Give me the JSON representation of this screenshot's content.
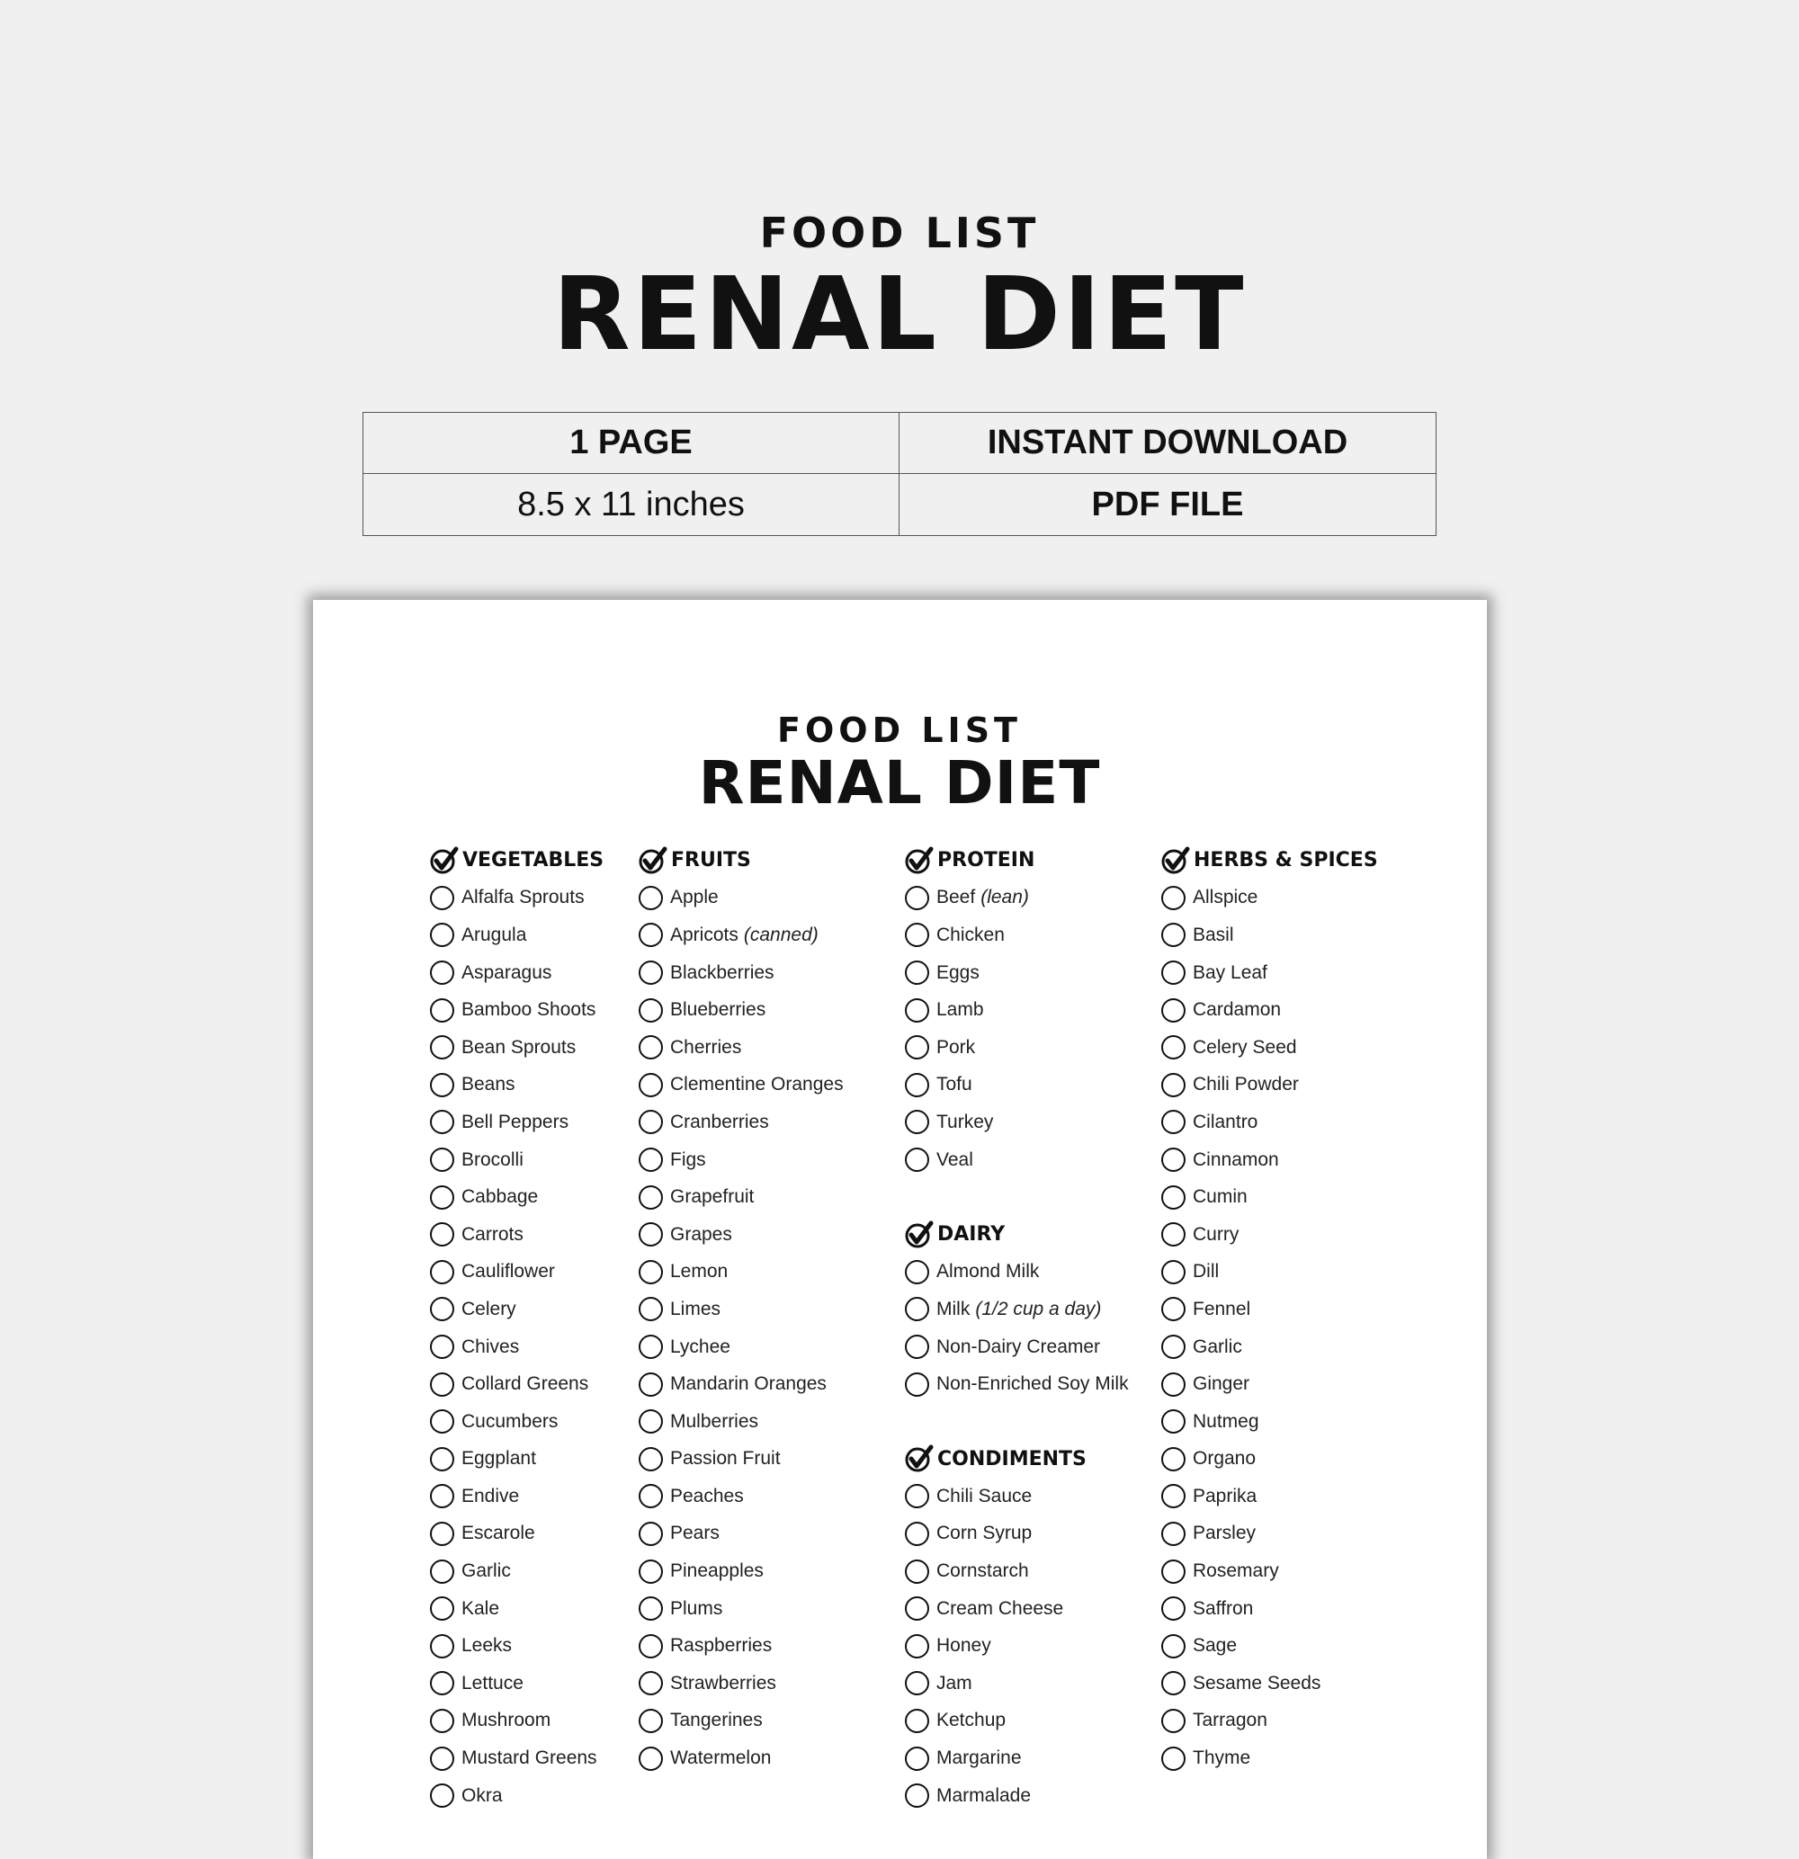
{
  "header": {
    "subtitle": "FOOD LIST",
    "title": "RENAL DIET"
  },
  "info": {
    "pages": "1 PAGE",
    "delivery": "INSTANT DOWNLOAD",
    "size": "8.5 x 11 inches",
    "format": "PDF FILE"
  },
  "document": {
    "subtitle": "FOOD LIST",
    "title": "RENAL DIET",
    "columns": [
      {
        "sections": [
          {
            "title": "VEGETABLES",
            "items": [
              {
                "name": "Alfalfa Sprouts"
              },
              {
                "name": "Arugula"
              },
              {
                "name": "Asparagus"
              },
              {
                "name": "Bamboo Shoots"
              },
              {
                "name": "Bean Sprouts"
              },
              {
                "name": "Beans"
              },
              {
                "name": "Bell Peppers"
              },
              {
                "name": "Brocolli"
              },
              {
                "name": "Cabbage"
              },
              {
                "name": "Carrots"
              },
              {
                "name": "Cauliflower"
              },
              {
                "name": "Celery"
              },
              {
                "name": "Chives"
              },
              {
                "name": "Collard Greens"
              },
              {
                "name": "Cucumbers"
              },
              {
                "name": "Eggplant"
              },
              {
                "name": "Endive"
              },
              {
                "name": "Escarole"
              },
              {
                "name": "Garlic"
              },
              {
                "name": "Kale"
              },
              {
                "name": "Leeks"
              },
              {
                "name": "Lettuce"
              },
              {
                "name": "Mushroom"
              },
              {
                "name": "Mustard Greens"
              },
              {
                "name": "Okra"
              }
            ]
          }
        ]
      },
      {
        "sections": [
          {
            "title": "FRUITS",
            "items": [
              {
                "name": "Apple"
              },
              {
                "name": "Apricots",
                "note": "(canned)"
              },
              {
                "name": "Blackberries"
              },
              {
                "name": "Blueberries"
              },
              {
                "name": "Cherries"
              },
              {
                "name": "Clementine Oranges"
              },
              {
                "name": "Cranberries"
              },
              {
                "name": "Figs"
              },
              {
                "name": "Grapefruit"
              },
              {
                "name": "Grapes"
              },
              {
                "name": "Lemon"
              },
              {
                "name": "Limes"
              },
              {
                "name": "Lychee"
              },
              {
                "name": "Mandarin Oranges"
              },
              {
                "name": "Mulberries"
              },
              {
                "name": "Passion Fruit"
              },
              {
                "name": "Peaches"
              },
              {
                "name": "Pears"
              },
              {
                "name": "Pineapples"
              },
              {
                "name": "Plums"
              },
              {
                "name": "Raspberries"
              },
              {
                "name": "Strawberries"
              },
              {
                "name": "Tangerines"
              },
              {
                "name": "Watermelon"
              }
            ]
          }
        ]
      },
      {
        "sections": [
          {
            "title": "PROTEIN",
            "items": [
              {
                "name": "Beef",
                "note": "(lean)"
              },
              {
                "name": "Chicken"
              },
              {
                "name": "Eggs"
              },
              {
                "name": "Lamb"
              },
              {
                "name": "Pork"
              },
              {
                "name": "Tofu"
              },
              {
                "name": "Turkey"
              },
              {
                "name": "Veal"
              }
            ]
          },
          {
            "title": "DAIRY",
            "items": [
              {
                "name": "Almond Milk"
              },
              {
                "name": "Milk",
                "note": "(1/2 cup a day)"
              },
              {
                "name": "Non-Dairy Creamer"
              },
              {
                "name": "Non-Enriched Soy Milk"
              }
            ]
          },
          {
            "title": "CONDIMENTS",
            "items": [
              {
                "name": "Chili Sauce"
              },
              {
                "name": "Corn Syrup"
              },
              {
                "name": "Cornstarch"
              },
              {
                "name": "Cream Cheese"
              },
              {
                "name": "Honey"
              },
              {
                "name": "Jam"
              },
              {
                "name": "Ketchup"
              },
              {
                "name": "Margarine"
              },
              {
                "name": "Marmalade"
              }
            ]
          }
        ]
      },
      {
        "sections": [
          {
            "title": "HERBS & SPICES",
            "items": [
              {
                "name": "Allspice"
              },
              {
                "name": "Basil"
              },
              {
                "name": "Bay Leaf"
              },
              {
                "name": "Cardamon"
              },
              {
                "name": "Celery Seed"
              },
              {
                "name": "Chili Powder"
              },
              {
                "name": "Cilantro"
              },
              {
                "name": "Cinnamon"
              },
              {
                "name": "Cumin"
              },
              {
                "name": "Curry"
              },
              {
                "name": "Dill"
              },
              {
                "name": "Fennel"
              },
              {
                "name": "Garlic"
              },
              {
                "name": "Ginger"
              },
              {
                "name": "Nutmeg"
              },
              {
                "name": "Organo"
              },
              {
                "name": "Paprika"
              },
              {
                "name": "Parsley"
              },
              {
                "name": "Rosemary"
              },
              {
                "name": "Saffron"
              },
              {
                "name": "Sage"
              },
              {
                "name": "Sesame Seeds"
              },
              {
                "name": "Tarragon"
              },
              {
                "name": "Thyme"
              }
            ]
          }
        ]
      }
    ]
  }
}
